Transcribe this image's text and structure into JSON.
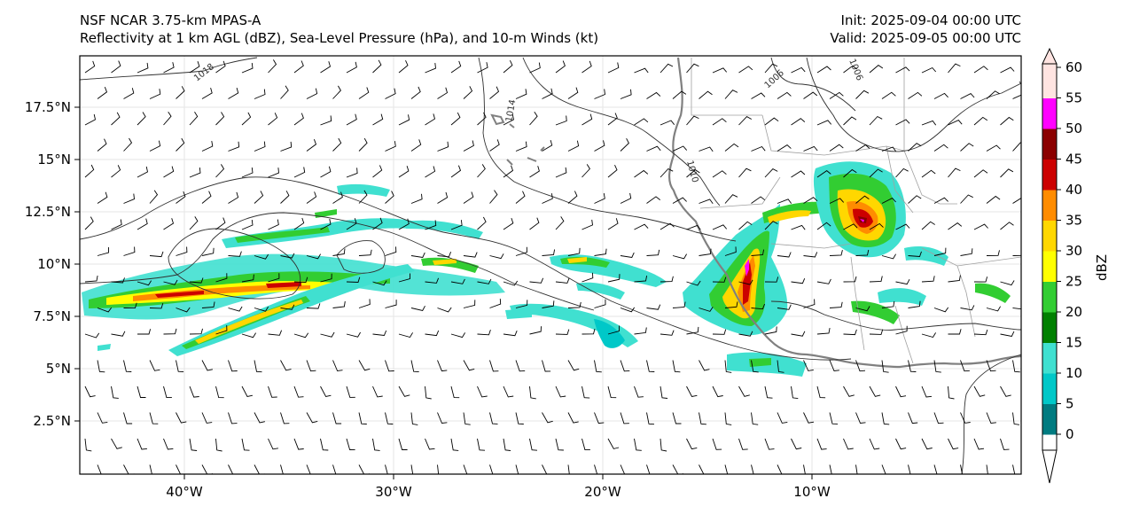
{
  "header": {
    "model": "NSF NCAR 3.75-km MPAS-A",
    "fields": "Reflectivity at 1 km AGL (dBZ), Sea-Level Pressure (hPa), and 10-m Winds (kt)",
    "init": "Init: 2025-09-04 00:00 UTC",
    "valid": "Valid: 2025-09-05 00:00 UTC"
  },
  "map": {
    "lat_ticks": [
      "17.5°N",
      "15°N",
      "12.5°N",
      "10°N",
      "7.5°N",
      "5°N",
      "2.5°N"
    ],
    "lon_ticks": [
      "40°W",
      "30°W",
      "20°W",
      "10°W"
    ],
    "isobar_labels": [
      "1018",
      "1014",
      "1010",
      "1006",
      "1006"
    ]
  },
  "colorbar": {
    "label": "dBZ",
    "ticks": [
      "0",
      "5",
      "10",
      "15",
      "20",
      "25",
      "30",
      "35",
      "40",
      "45",
      "50",
      "55",
      "60"
    ],
    "colors": [
      "#ffffff",
      "#007b80",
      "#00c8c8",
      "#40e0d0",
      "#008000",
      "#32cd32",
      "#ffff00",
      "#ffd700",
      "#ff8c00",
      "#cc0000",
      "#8b0000",
      "#ff00ff",
      "#ffe4e1"
    ]
  }
}
